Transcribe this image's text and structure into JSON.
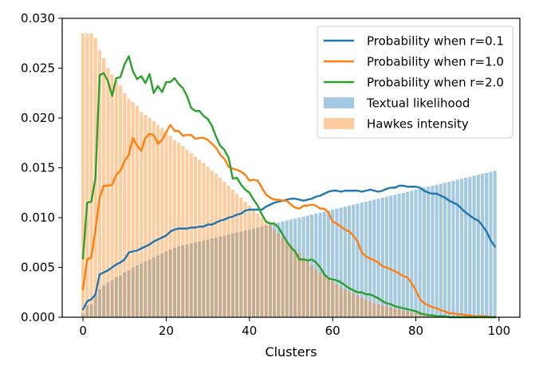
{
  "chart_data": {
    "type": "bar",
    "title": "",
    "xlabel": "Clusters",
    "ylabel": "",
    "xlim": [
      -5,
      105
    ],
    "ylim": [
      0,
      0.03
    ],
    "x_ticks": [
      0,
      20,
      40,
      60,
      80,
      100
    ],
    "x_tick_labels": [
      "0",
      "20",
      "40",
      "60",
      "80",
      "100"
    ],
    "y_ticks": [
      0,
      0.005,
      0.01,
      0.015,
      0.02,
      0.025,
      0.03
    ],
    "y_tick_labels": [
      "0.000",
      "0.005",
      "0.010",
      "0.015",
      "0.020",
      "0.025",
      "0.030"
    ],
    "grid": false,
    "legend_position": "upper right",
    "x": [
      0,
      1,
      2,
      3,
      4,
      5,
      6,
      7,
      8,
      9,
      10,
      11,
      12,
      13,
      14,
      15,
      16,
      17,
      18,
      19,
      20,
      21,
      22,
      23,
      24,
      25,
      26,
      27,
      28,
      29,
      30,
      31,
      32,
      33,
      34,
      35,
      36,
      37,
      38,
      39,
      40,
      41,
      42,
      43,
      44,
      45,
      46,
      47,
      48,
      49,
      50,
      51,
      52,
      53,
      54,
      55,
      56,
      57,
      58,
      59,
      60,
      61,
      62,
      63,
      64,
      65,
      66,
      67,
      68,
      69,
      70,
      71,
      72,
      73,
      74,
      75,
      76,
      77,
      78,
      79,
      80,
      81,
      82,
      83,
      84,
      85,
      86,
      87,
      88,
      89,
      90,
      91,
      92,
      93,
      94,
      95,
      96,
      97,
      98,
      99
    ],
    "line_series": [
      {
        "name": "Probability when r=0.1",
        "color": "#1f77b4",
        "values": [
          0.0008,
          0.0016,
          0.0018,
          0.0023,
          0.0043,
          0.0045,
          0.0047,
          0.005,
          0.0053,
          0.0055,
          0.0058,
          0.0065,
          0.0066,
          0.0067,
          0.0069,
          0.0071,
          0.0073,
          0.0076,
          0.0078,
          0.008,
          0.0082,
          0.0086,
          0.0088,
          0.0089,
          0.0089,
          0.0089,
          0.009,
          0.009,
          0.0091,
          0.0091,
          0.0093,
          0.0093,
          0.0095,
          0.0097,
          0.0098,
          0.01,
          0.0101,
          0.0103,
          0.0104,
          0.0107,
          0.0108,
          0.0108,
          0.0108,
          0.0108,
          0.0111,
          0.0113,
          0.0115,
          0.0116,
          0.0117,
          0.0118,
          0.0119,
          0.0119,
          0.0118,
          0.0117,
          0.0118,
          0.0119,
          0.0121,
          0.0122,
          0.0124,
          0.0126,
          0.0127,
          0.0127,
          0.0126,
          0.0127,
          0.0127,
          0.0127,
          0.0127,
          0.0126,
          0.0127,
          0.0128,
          0.0127,
          0.0126,
          0.0127,
          0.0129,
          0.013,
          0.013,
          0.0132,
          0.0132,
          0.0131,
          0.0131,
          0.0131,
          0.013,
          0.0127,
          0.0125,
          0.0124,
          0.0124,
          0.0122,
          0.012,
          0.0117,
          0.0115,
          0.0113,
          0.0109,
          0.0105,
          0.0102,
          0.0099,
          0.0097,
          0.0092,
          0.0086,
          0.0077,
          0.0071
        ]
      },
      {
        "name": "Probability when r=1.0",
        "color": "#ff7f0e",
        "values": [
          0.0028,
          0.0058,
          0.006,
          0.0088,
          0.012,
          0.0132,
          0.0132,
          0.0133,
          0.0143,
          0.0147,
          0.0157,
          0.0163,
          0.018,
          0.0172,
          0.0167,
          0.018,
          0.0184,
          0.0183,
          0.0174,
          0.0178,
          0.0186,
          0.0193,
          0.0187,
          0.0187,
          0.0182,
          0.0183,
          0.0183,
          0.0179,
          0.018,
          0.018,
          0.0178,
          0.0174,
          0.017,
          0.0163,
          0.0159,
          0.0151,
          0.0149,
          0.0148,
          0.0146,
          0.0143,
          0.0137,
          0.0138,
          0.0137,
          0.013,
          0.0123,
          0.012,
          0.0118,
          0.0118,
          0.0117,
          0.0117,
          0.0113,
          0.011,
          0.0109,
          0.0112,
          0.0112,
          0.0113,
          0.0112,
          0.0109,
          0.0109,
          0.0105,
          0.0096,
          0.0094,
          0.0091,
          0.0088,
          0.0086,
          0.0082,
          0.0076,
          0.0065,
          0.0061,
          0.0059,
          0.0057,
          0.0055,
          0.0051,
          0.005,
          0.0048,
          0.0046,
          0.0044,
          0.0041,
          0.004,
          0.0034,
          0.0027,
          0.0018,
          0.0014,
          0.0012,
          0.001,
          0.0009,
          0.0007,
          0.0006,
          0.0004,
          0.0004,
          0.0003,
          0.0003,
          0.0002,
          0.0002,
          0.0001,
          0.0001,
          0.0001,
          0.0001,
          0.0,
          0.0
        ]
      },
      {
        "name": "Probability when r=2.0",
        "color": "#2ca02c",
        "values": [
          0.0059,
          0.0115,
          0.0116,
          0.014,
          0.0243,
          0.0245,
          0.0237,
          0.0222,
          0.024,
          0.0241,
          0.0254,
          0.0262,
          0.0247,
          0.0239,
          0.0242,
          0.0235,
          0.0244,
          0.0225,
          0.0232,
          0.0226,
          0.0236,
          0.0236,
          0.024,
          0.0234,
          0.023,
          0.0222,
          0.021,
          0.0207,
          0.0207,
          0.0202,
          0.0199,
          0.0192,
          0.0181,
          0.0172,
          0.0168,
          0.016,
          0.0139,
          0.014,
          0.0133,
          0.0128,
          0.0125,
          0.0118,
          0.0112,
          0.0103,
          0.0096,
          0.0094,
          0.0094,
          0.009,
          0.0083,
          0.0076,
          0.007,
          0.0066,
          0.0058,
          0.0058,
          0.0057,
          0.0058,
          0.0055,
          0.005,
          0.0043,
          0.0039,
          0.0038,
          0.0037,
          0.0035,
          0.0032,
          0.0029,
          0.0027,
          0.0025,
          0.0025,
          0.0023,
          0.0023,
          0.0021,
          0.0019,
          0.0016,
          0.0014,
          0.0013,
          0.0011,
          0.001,
          0.0009,
          0.0008,
          0.0007,
          0.0006,
          0.0004,
          0.0003,
          0.0002,
          0.0002,
          0.0001,
          0.0001,
          0.0001,
          0.0,
          0.0,
          0.0,
          0.0,
          0.0,
          0.0,
          0.0,
          0.0,
          0.0,
          0.0,
          0.0,
          0.0
        ]
      }
    ],
    "bar_series": [
      {
        "name": "Textual likelihood",
        "color": "#1f77b4",
        "opacity": 0.4,
        "values": [
          0.0003,
          0.0012,
          0.0013,
          0.0022,
          0.0028,
          0.0032,
          0.0035,
          0.0037,
          0.004,
          0.0042,
          0.0045,
          0.0047,
          0.005,
          0.0052,
          0.0054,
          0.0056,
          0.0058,
          0.006,
          0.0062,
          0.0064,
          0.0066,
          0.0068,
          0.007,
          0.0071,
          0.0072,
          0.0073,
          0.0074,
          0.0075,
          0.0076,
          0.0077,
          0.0078,
          0.0079,
          0.008,
          0.0081,
          0.0082,
          0.0083,
          0.0084,
          0.0085,
          0.0086,
          0.0087,
          0.0088,
          0.0089,
          0.009,
          0.0091,
          0.0092,
          0.0093,
          0.0094,
          0.0095,
          0.0096,
          0.0097,
          0.0098,
          0.0099,
          0.01,
          0.0101,
          0.0102,
          0.0103,
          0.0104,
          0.0105,
          0.0106,
          0.0107,
          0.0108,
          0.0109,
          0.011,
          0.0111,
          0.0112,
          0.0113,
          0.0114,
          0.0115,
          0.0116,
          0.0117,
          0.0118,
          0.0119,
          0.012,
          0.0121,
          0.0122,
          0.0123,
          0.0124,
          0.0125,
          0.0126,
          0.0127,
          0.0128,
          0.0129,
          0.013,
          0.0131,
          0.0132,
          0.0133,
          0.0134,
          0.0135,
          0.0136,
          0.0137,
          0.0138,
          0.0139,
          0.014,
          0.0141,
          0.0142,
          0.0143,
          0.0144,
          0.0145,
          0.0146,
          0.0147
        ]
      },
      {
        "name": "Hawkes intensity",
        "color": "#ff7f0e",
        "opacity": 0.4,
        "values": [
          0.0285,
          0.0285,
          0.0285,
          0.028,
          0.0268,
          0.026,
          0.025,
          0.0244,
          0.0238,
          0.0233,
          0.0225,
          0.0219,
          0.0216,
          0.0212,
          0.0206,
          0.0203,
          0.02,
          0.0197,
          0.0193,
          0.019,
          0.0186,
          0.0182,
          0.0178,
          0.0175,
          0.0172,
          0.0168,
          0.0165,
          0.0161,
          0.0158,
          0.0155,
          0.0151,
          0.0147,
          0.0144,
          0.014,
          0.0136,
          0.0132,
          0.0128,
          0.0124,
          0.012,
          0.0116,
          0.0112,
          0.0108,
          0.0104,
          0.01,
          0.0096,
          0.0092,
          0.0088,
          0.0084,
          0.008,
          0.0076,
          0.0072,
          0.0068,
          0.0064,
          0.006,
          0.0056,
          0.0052,
          0.0048,
          0.0045,
          0.0042,
          0.0039,
          0.0036,
          0.0033,
          0.003,
          0.0028,
          0.0026,
          0.0024,
          0.0022,
          0.002,
          0.0018,
          0.0016,
          0.0014,
          0.0013,
          0.0012,
          0.0011,
          0.001,
          0.0009,
          0.0008,
          0.0007,
          0.0006,
          0.0005,
          0.0004,
          0.0004,
          0.0003,
          0.0003,
          0.0002,
          0.0002,
          0.0002,
          0.0001,
          0.0001,
          0.0001,
          0.0001,
          0.0001,
          0.0,
          0.0,
          0.0,
          0.0,
          0.0,
          0.0,
          0.0,
          0.0
        ]
      }
    ]
  }
}
